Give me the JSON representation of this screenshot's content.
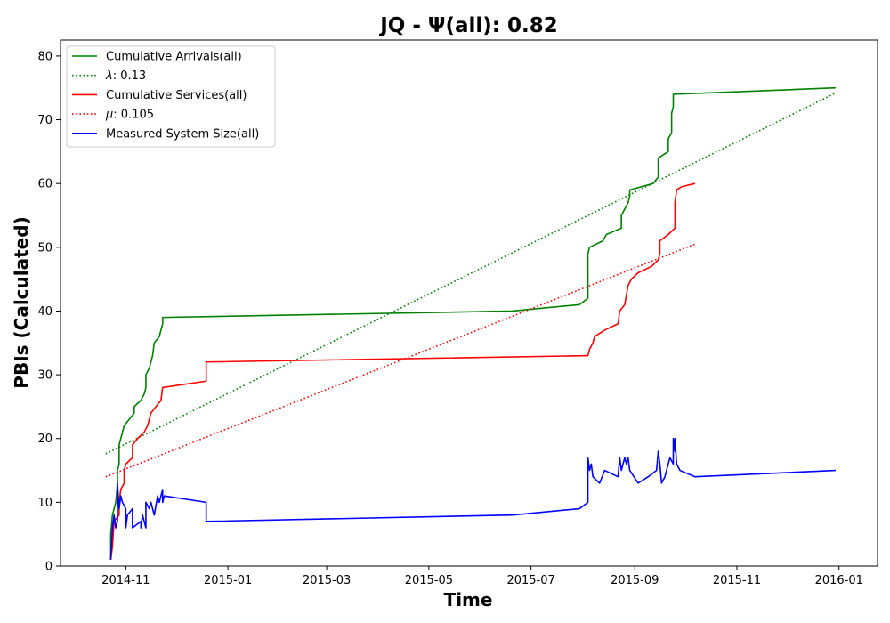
{
  "chart_data": {
    "type": "line",
    "title": "JQ -  Ψ(all): 0.82",
    "xlabel": "Time",
    "ylabel": "PBIs (Calculated)",
    "xlim": [
      "2014-09-23",
      "2016-01-24"
    ],
    "ylim": [
      0,
      82.5
    ],
    "x_ticks": [
      "2014-11",
      "2015-01",
      "2015-03",
      "2015-05",
      "2015-07",
      "2015-09",
      "2015-11",
      "2016-01"
    ],
    "y_ticks": [
      0,
      10,
      20,
      30,
      40,
      50,
      60,
      70,
      80
    ],
    "grid": false,
    "legend_position": "top-left",
    "series": [
      {
        "name": "Cumulative Arrivals(all)",
        "style": "solid",
        "color": "#008000",
        "points": [
          [
            "2014-10-23",
            1
          ],
          [
            "2014-10-23",
            3
          ],
          [
            "2014-10-23",
            5
          ],
          [
            "2014-10-24",
            8
          ],
          [
            "2014-10-26",
            10
          ],
          [
            "2014-10-27",
            13
          ],
          [
            "2014-10-27",
            15
          ],
          [
            "2014-10-28",
            16
          ],
          [
            "2014-10-28",
            19
          ],
          [
            "2014-10-30",
            21
          ],
          [
            "2014-10-31",
            22
          ],
          [
            "2014-11-03",
            23
          ],
          [
            "2014-11-06",
            24
          ],
          [
            "2014-11-06",
            25
          ],
          [
            "2014-11-10",
            26
          ],
          [
            "2014-11-12",
            27
          ],
          [
            "2014-11-13",
            28
          ],
          [
            "2014-11-13",
            30
          ],
          [
            "2014-11-15",
            31
          ],
          [
            "2014-11-17",
            33
          ],
          [
            "2014-11-18",
            35
          ],
          [
            "2014-11-21",
            36
          ],
          [
            "2014-11-23",
            38
          ],
          [
            "2014-11-23",
            39
          ],
          [
            "2015-06-20",
            40
          ],
          [
            "2015-07-30",
            41
          ],
          [
            "2015-08-04",
            42
          ],
          [
            "2015-08-04",
            49
          ],
          [
            "2015-08-05",
            50
          ],
          [
            "2015-08-13",
            51
          ],
          [
            "2015-08-15",
            52
          ],
          [
            "2015-08-24",
            53
          ],
          [
            "2015-08-24",
            55
          ],
          [
            "2015-08-28",
            57
          ],
          [
            "2015-08-29",
            58
          ],
          [
            "2015-08-29",
            59
          ],
          [
            "2015-09-12",
            60
          ],
          [
            "2015-09-15",
            61
          ],
          [
            "2015-09-15",
            64
          ],
          [
            "2015-09-21",
            65
          ],
          [
            "2015-09-21",
            67
          ],
          [
            "2015-09-23",
            68
          ],
          [
            "2015-09-23",
            71
          ],
          [
            "2015-09-24",
            72
          ],
          [
            "2015-09-24",
            74
          ],
          [
            "2015-12-30",
            75
          ]
        ]
      },
      {
        "name": "λ: 0.13",
        "label_prefix": "λ",
        "label_value": ": 0.13",
        "style": "dotted",
        "color": "#008000",
        "points": [
          [
            "2014-10-20",
            17.6
          ],
          [
            "2015-12-30",
            74.2
          ]
        ]
      },
      {
        "name": "Cumulative Services(all)",
        "style": "solid",
        "color": "#ff0000",
        "points": [
          [
            "2014-10-23",
            1
          ],
          [
            "2014-10-24",
            3
          ],
          [
            "2014-10-25",
            7
          ],
          [
            "2014-10-28",
            8
          ],
          [
            "2014-10-28",
            10
          ],
          [
            "2014-10-29",
            12
          ],
          [
            "2014-10-31",
            13
          ],
          [
            "2014-10-31",
            15
          ],
          [
            "2014-11-01",
            16
          ],
          [
            "2014-11-05",
            17
          ],
          [
            "2014-11-05",
            19
          ],
          [
            "2014-11-08",
            20
          ],
          [
            "2014-11-12",
            21
          ],
          [
            "2014-11-14",
            22
          ],
          [
            "2014-11-16",
            24
          ],
          [
            "2014-11-19",
            25
          ],
          [
            "2014-11-22",
            26
          ],
          [
            "2014-11-23",
            28
          ],
          [
            "2014-12-19",
            29
          ],
          [
            "2014-12-19",
            32
          ],
          [
            "2015-08-04",
            33
          ],
          [
            "2015-08-05",
            34
          ],
          [
            "2015-08-07",
            35
          ],
          [
            "2015-08-08",
            36
          ],
          [
            "2015-08-14",
            37
          ],
          [
            "2015-08-22",
            38
          ],
          [
            "2015-08-23",
            40
          ],
          [
            "2015-08-26",
            41
          ],
          [
            "2015-08-28",
            44
          ],
          [
            "2015-08-30",
            45
          ],
          [
            "2015-09-03",
            46
          ],
          [
            "2015-09-11",
            47
          ],
          [
            "2015-09-15",
            48
          ],
          [
            "2015-09-16",
            49
          ],
          [
            "2015-09-16",
            51
          ],
          [
            "2015-09-21",
            52
          ],
          [
            "2015-09-25",
            53
          ],
          [
            "2015-09-25",
            54
          ],
          [
            "2015-09-25",
            57
          ],
          [
            "2015-09-26",
            59
          ],
          [
            "2015-09-29",
            59.5
          ],
          [
            "2015-10-07",
            60
          ]
        ]
      },
      {
        "name": "μ: 0.105",
        "label_prefix": "μ",
        "label_value": ": 0.105",
        "style": "dotted",
        "color": "#ff0000",
        "points": [
          [
            "2014-10-20",
            14.0
          ],
          [
            "2015-10-07",
            50.5
          ]
        ]
      },
      {
        "name": "Measured System Size(all)",
        "style": "solid",
        "color": "#0000ff",
        "points": [
          [
            "2014-10-23",
            1
          ],
          [
            "2014-10-24",
            6
          ],
          [
            "2014-10-25",
            8
          ],
          [
            "2014-10-26",
            6
          ],
          [
            "2014-10-27",
            7
          ],
          [
            "2014-10-27",
            13
          ],
          [
            "2014-10-28",
            9
          ],
          [
            "2014-10-29",
            11
          ],
          [
            "2014-10-30",
            10
          ],
          [
            "2014-11-01",
            9
          ],
          [
            "2014-11-01",
            6
          ],
          [
            "2014-11-02",
            8
          ],
          [
            "2014-11-05",
            9
          ],
          [
            "2014-11-05",
            6
          ],
          [
            "2014-11-10",
            7
          ],
          [
            "2014-11-10",
            6
          ],
          [
            "2014-11-11",
            8
          ],
          [
            "2014-11-13",
            6
          ],
          [
            "2014-11-13",
            10
          ],
          [
            "2014-11-15",
            9
          ],
          [
            "2014-11-16",
            10
          ],
          [
            "2014-11-18",
            8
          ],
          [
            "2014-11-20",
            11
          ],
          [
            "2014-11-21",
            10
          ],
          [
            "2014-11-22",
            11
          ],
          [
            "2014-11-23",
            12
          ],
          [
            "2014-11-23",
            10
          ],
          [
            "2014-11-24",
            11
          ],
          [
            "2014-12-19",
            10
          ],
          [
            "2014-12-19",
            7
          ],
          [
            "2015-06-20",
            8
          ],
          [
            "2015-07-30",
            9
          ],
          [
            "2015-08-04",
            10
          ],
          [
            "2015-08-04",
            17
          ],
          [
            "2015-08-05",
            15
          ],
          [
            "2015-08-06",
            16
          ],
          [
            "2015-08-07",
            14
          ],
          [
            "2015-08-11",
            13
          ],
          [
            "2015-08-14",
            15
          ],
          [
            "2015-08-22",
            14
          ],
          [
            "2015-08-23",
            17
          ],
          [
            "2015-08-24",
            15
          ],
          [
            "2015-08-26",
            17
          ],
          [
            "2015-08-27",
            16
          ],
          [
            "2015-08-28",
            17
          ],
          [
            "2015-08-29",
            15
          ],
          [
            "2015-09-03",
            13
          ],
          [
            "2015-09-09",
            14
          ],
          [
            "2015-09-14",
            15
          ],
          [
            "2015-09-15",
            18
          ],
          [
            "2015-09-16",
            16
          ],
          [
            "2015-09-17",
            13
          ],
          [
            "2015-09-19",
            14
          ],
          [
            "2015-09-22",
            17
          ],
          [
            "2015-09-24",
            16
          ],
          [
            "2015-09-24",
            20
          ],
          [
            "2015-09-25",
            18
          ],
          [
            "2015-09-25",
            20
          ],
          [
            "2015-09-26",
            16
          ],
          [
            "2015-09-28",
            15
          ],
          [
            "2015-10-07",
            14
          ],
          [
            "2015-12-30",
            15
          ]
        ]
      }
    ]
  }
}
